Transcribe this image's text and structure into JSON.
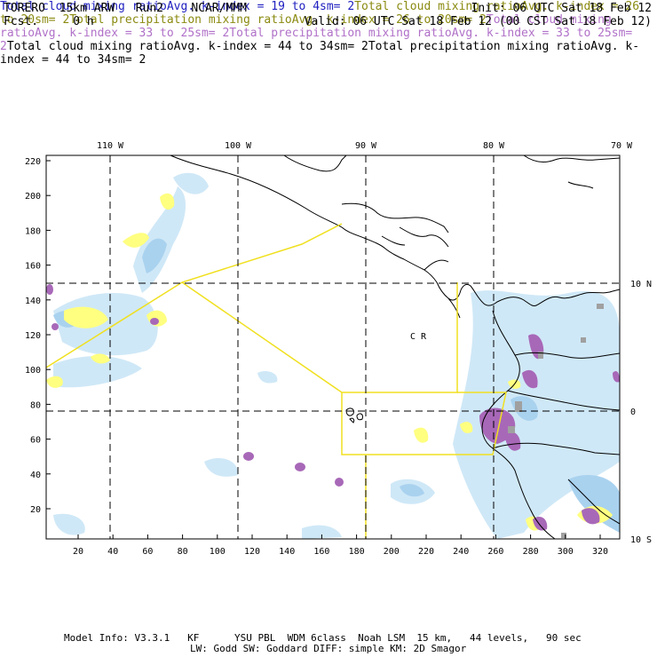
{
  "header": {
    "left1": "TORERO  15km ARW   Run2    NCAR/MMM",
    "left2": "Fcst.     0 h",
    "init": "Init: 06 UTC Sat 18 Feb 12",
    "valid": "Valid: 06 UTC Sat 18 Feb 12 (00 CST Sat 18 Feb 12)"
  },
  "legend": [
    {
      "name": "Total cloud mixing ratio",
      "k": "Avg. k-index =  19  to   4",
      "sm": "sm= 2",
      "color": "#2020c0"
    },
    {
      "name": "Total cloud mixing ratio",
      "k": "Avg. k-index =  26  to  20",
      "sm": "sm= 2",
      "color": "#8a8a10"
    },
    {
      "name": "Total precipitation mixing ratio",
      "k": "Avg. k-index =  26  to  20",
      "sm": "sm= 2",
      "color": "#8a8a10"
    },
    {
      "name": "Total cloud mixing ratio",
      "k": "Avg. k-index =  33  to  25",
      "sm": "sm= 2",
      "color": "#b070c8"
    },
    {
      "name": "Total precipitation mixing ratio",
      "k": "Avg. k-index =  33  to  25",
      "sm": "sm= 2",
      "color": "#b070c8"
    },
    {
      "name": "Total cloud mixing ratio",
      "k": "Avg. k-index =  44  to  34",
      "sm": "sm= 2",
      "color": "#000000"
    },
    {
      "name": "Total precipitation mixing ratio",
      "k": "Avg. k-index =  44  to  34",
      "sm": "sm= 2",
      "color": "#000000"
    }
  ],
  "axes": {
    "top_lon": [
      "110 W",
      "100 W",
      "90 W",
      "80 W",
      "70 W"
    ],
    "right_lat": [
      "10 N",
      "0",
      "10 S"
    ],
    "left_y": [
      "220",
      "200",
      "180",
      "160",
      "140",
      "120",
      "100",
      "80",
      "60",
      "40",
      "20"
    ],
    "bottom_x": [
      "20",
      "40",
      "60",
      "80",
      "100",
      "120",
      "140",
      "160",
      "180",
      "200",
      "220",
      "240",
      "260",
      "280",
      "300",
      "320"
    ]
  },
  "map_label": "C  R",
  "colors": {
    "light_blue": "#cfe8f7",
    "blue": "#a9d2ef",
    "yellow": "#ffff80",
    "purple": "#a868b8",
    "grey": "#a0a0a0",
    "boundary": "#f0e020"
  },
  "footer": {
    "line1": "Model Info: V3.3.1   KF      YSU PBL  WDM 6class  Noah LSM  15 km,   44 levels,   90 sec",
    "line2": "LW: Godd SW: Goddard DIFF: simple KM: 2D Smagor"
  }
}
